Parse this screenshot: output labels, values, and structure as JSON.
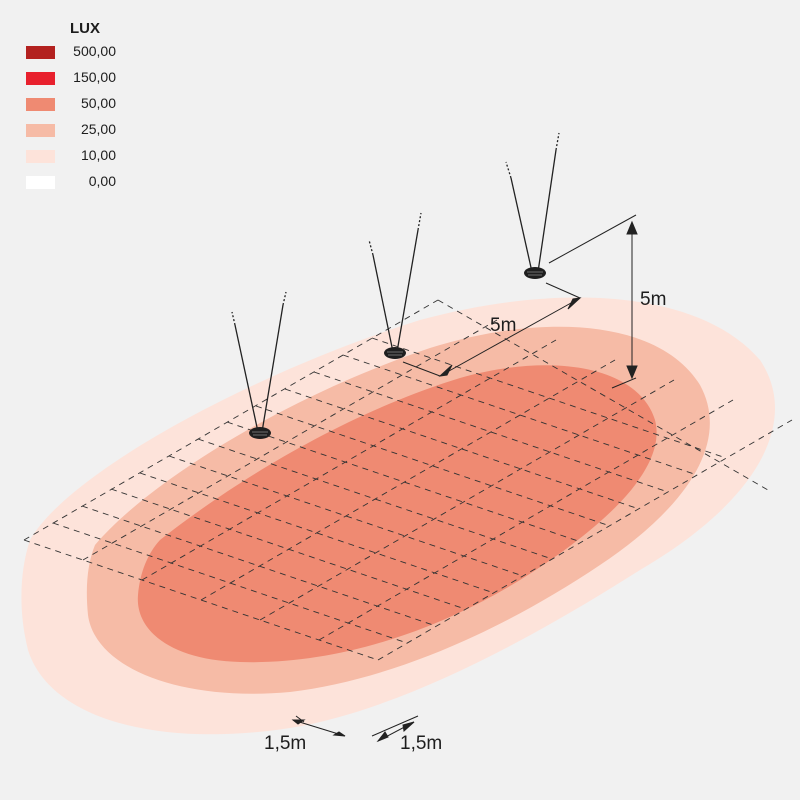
{
  "legend": {
    "title": "LUX",
    "items": [
      {
        "value": "500,00",
        "color": "#b3211f"
      },
      {
        "value": "150,00",
        "color": "#e8202d"
      },
      {
        "value": "50,00",
        "color": "#ef8a72"
      },
      {
        "value": "25,00",
        "color": "#f6bba6"
      },
      {
        "value": "10,00",
        "color": "#fde3da"
      },
      {
        "value": "0,00",
        "color": "#ffffff"
      }
    ]
  },
  "dimensions": {
    "spacing": "5m",
    "height": "5m",
    "grid_a": "1,5m",
    "grid_b": "1,5m"
  },
  "luminaires": [
    "lamp-1",
    "lamp-2",
    "lamp-3"
  ]
}
